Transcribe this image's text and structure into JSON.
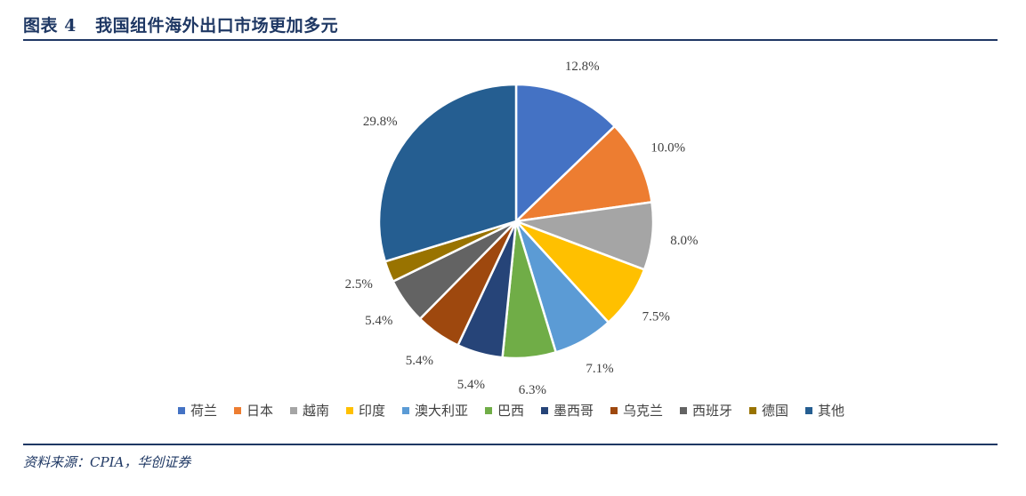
{
  "header": {
    "title": "图表 4   我国组件海外出口市场更加多元"
  },
  "footer": {
    "source": "资料来源：CPIA，华创证券"
  },
  "chart_data": {
    "type": "pie",
    "title": "",
    "categories": [
      "荷兰",
      "日本",
      "越南",
      "印度",
      "澳大利亚",
      "巴西",
      "墨西哥",
      "乌克兰",
      "西班牙",
      "德国",
      "其他"
    ],
    "values": [
      12.8,
      10.0,
      8.0,
      7.5,
      7.1,
      6.3,
      5.4,
      5.4,
      5.4,
      2.5,
      29.8
    ],
    "labels": [
      "12.8%",
      "10.0%",
      "8.0%",
      "7.5%",
      "7.1%",
      "6.3%",
      "5.4%",
      "5.4%",
      "5.4%",
      "2.5%",
      "29.8%"
    ],
    "unit": "%",
    "colors": [
      "#4472c4",
      "#ed7d31",
      "#a5a5a5",
      "#ffc000",
      "#5b9bd5",
      "#70ad47",
      "#264478",
      "#9e480e",
      "#636363",
      "#997300",
      "#255e91"
    ],
    "start_angle": "12 o'clock",
    "direction": "clockwise",
    "legend_position": "bottom"
  }
}
